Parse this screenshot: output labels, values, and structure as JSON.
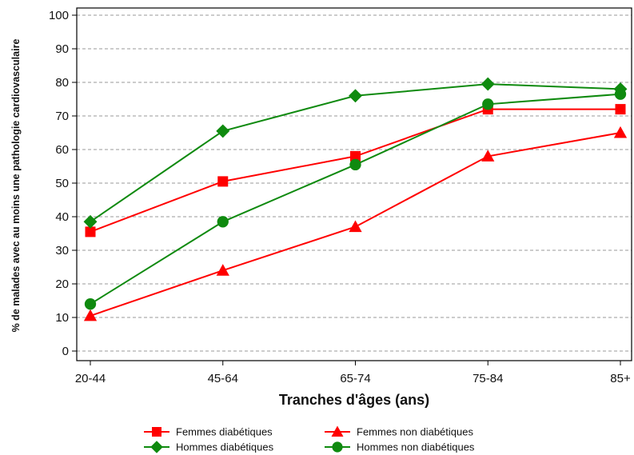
{
  "chart_data": {
    "type": "line",
    "title": "",
    "xlabel": "Tranches d'âges (ans)",
    "ylabel": "% de malades avec au moins une pathologie cardiovasculaire",
    "categories": [
      "20-44",
      "45-64",
      "65-74",
      "75-84",
      "85+"
    ],
    "ylim": [
      0,
      100
    ],
    "yticks": [
      0,
      10,
      20,
      30,
      40,
      50,
      60,
      70,
      80,
      90,
      100
    ],
    "grid": true,
    "legend_position": "bottom",
    "series": [
      {
        "name": "Femmes diabétiques",
        "color": "#ff0000",
        "marker": "square",
        "values": [
          35.5,
          50.5,
          58,
          72,
          72
        ]
      },
      {
        "name": "Hommes diabétiques",
        "color": "#0f8a0f",
        "marker": "diamond",
        "values": [
          38.5,
          65.5,
          76,
          79.5,
          78
        ]
      },
      {
        "name": "Femmes non diabétiques",
        "color": "#ff0000",
        "marker": "triangle",
        "values": [
          10.5,
          24,
          37,
          58,
          65
        ]
      },
      {
        "name": "Hommes non diabétiques",
        "color": "#0f8a0f",
        "marker": "circle",
        "values": [
          14,
          38.5,
          55.5,
          73.5,
          76.5
        ]
      }
    ]
  }
}
